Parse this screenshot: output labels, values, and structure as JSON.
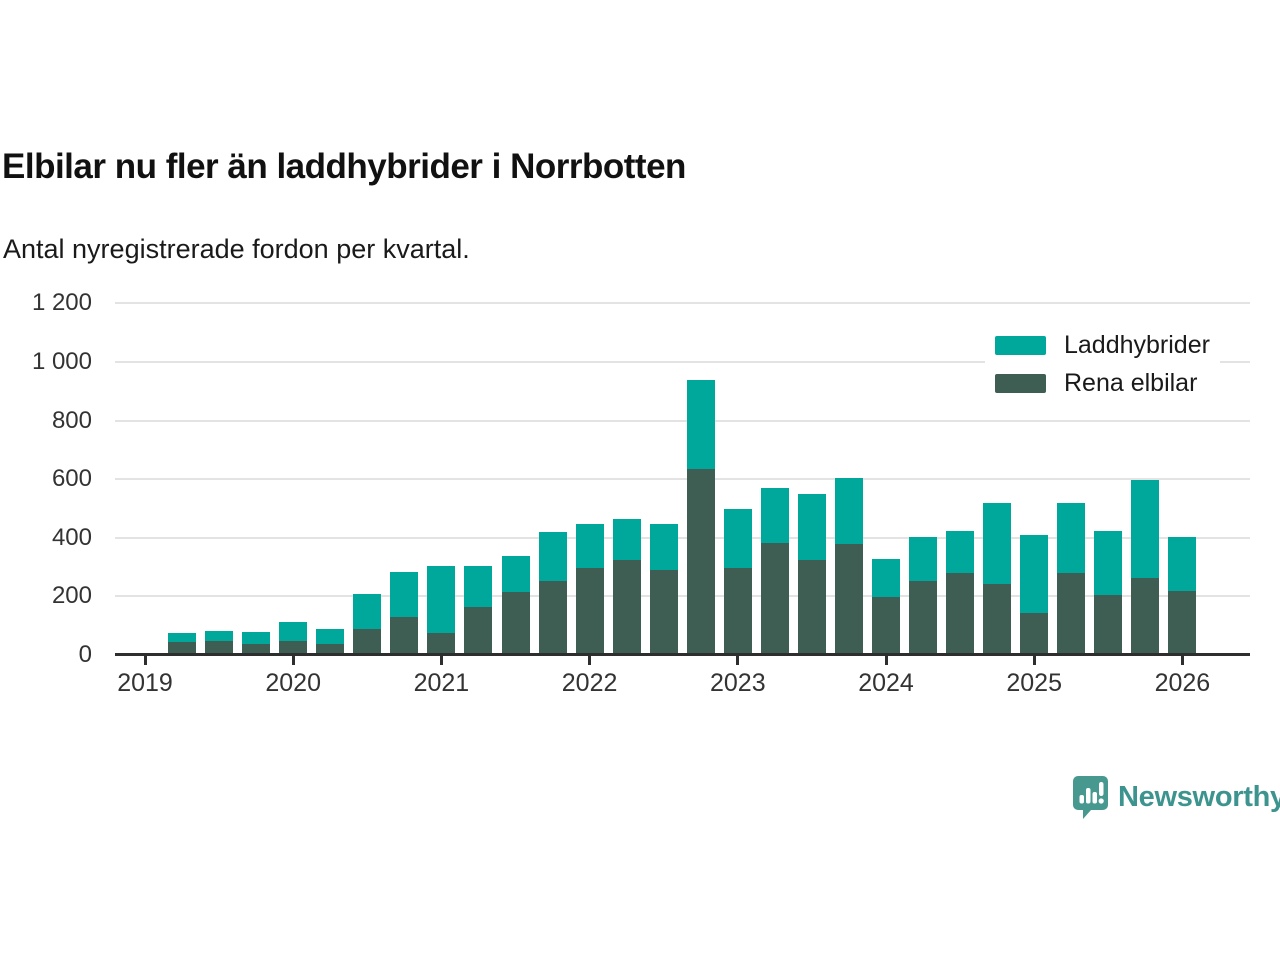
{
  "header": {
    "title": "Elbilar nu fler än laddhybrider i Norrbotten",
    "subtitle": "Antal nyregistrerade fordon per kvartal."
  },
  "legend": {
    "items": [
      {
        "label": "Laddhybrider",
        "color": "#00a89c"
      },
      {
        "label": "Rena elbilar",
        "color": "#3e5e54"
      }
    ]
  },
  "footer": {
    "brand": "Newsworthy",
    "brand_color": "#3d948e",
    "logo_color": "#47988f"
  },
  "chart_data": {
    "type": "bar",
    "stacked": true,
    "title": "Elbilar nu fler än laddhybrider i Norrbotten",
    "subtitle": "Antal nyregistrerade fordon per kvartal.",
    "xlabel": "",
    "ylabel": "",
    "grid": true,
    "legend_position": "top-right",
    "ylim": [
      0,
      1200
    ],
    "yticks": [
      {
        "value": 0,
        "label": "0"
      },
      {
        "value": 200,
        "label": "200"
      },
      {
        "value": 400,
        "label": "400"
      },
      {
        "value": 600,
        "label": "600"
      },
      {
        "value": 800,
        "label": "800"
      },
      {
        "value": 1000,
        "label": "1 000"
      },
      {
        "value": 1200,
        "label": "1 200"
      }
    ],
    "xticks": [
      "2019",
      "2020",
      "2021",
      "2022",
      "2023",
      "2024",
      "2025",
      "2026"
    ],
    "x": [
      "2019Q2",
      "2019Q3",
      "2019Q4",
      "2020Q1",
      "2020Q2",
      "2020Q3",
      "2020Q4",
      "2021Q1",
      "2021Q2",
      "2021Q3",
      "2021Q4",
      "2022Q1",
      "2022Q2",
      "2022Q3",
      "2022Q4",
      "2023Q1",
      "2023Q2",
      "2023Q3",
      "2023Q4",
      "2024Q1",
      "2024Q2",
      "2024Q3",
      "2024Q4",
      "2025Q1",
      "2025Q2",
      "2025Q3",
      "2025Q4",
      "2026Q1"
    ],
    "series": [
      {
        "name": "Rena elbilar",
        "color": "#3e5e54",
        "values": [
          40,
          45,
          35,
          45,
          35,
          85,
          125,
          70,
          160,
          210,
          250,
          295,
          320,
          285,
          630,
          295,
          380,
          320,
          375,
          195,
          250,
          275,
          240,
          140,
          275,
          200,
          260,
          215
        ]
      },
      {
        "name": "Laddhybrider",
        "color": "#00a89c",
        "values": [
          30,
          35,
          40,
          65,
          50,
          120,
          155,
          230,
          140,
          125,
          165,
          150,
          140,
          160,
          305,
          200,
          185,
          225,
          225,
          130,
          150,
          145,
          275,
          265,
          240,
          220,
          335,
          185
        ]
      }
    ]
  }
}
